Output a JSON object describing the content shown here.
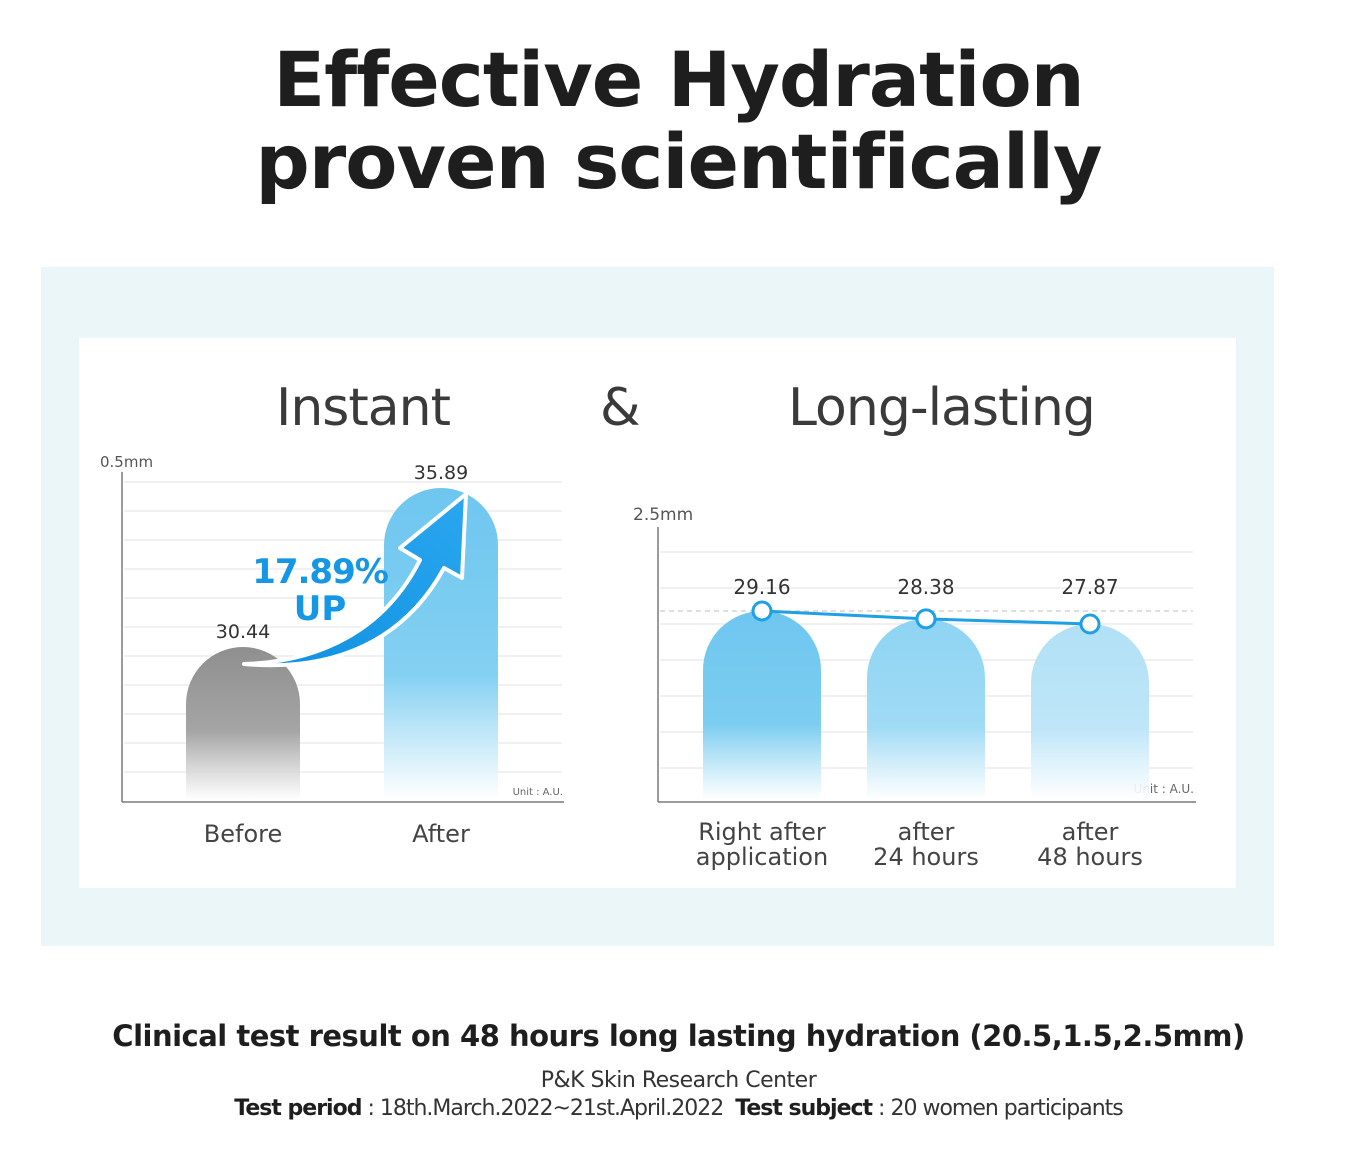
{
  "title_line1": "Effective Hydration",
  "title_line2": "proven scientifically",
  "heading_instant": "Instant",
  "heading_amp": "&",
  "heading_long": "Long-lasting",
  "colors": {
    "panel_bg": "#eaf6f7",
    "blue": "#4fb8eb",
    "gray": "#9a9a9a",
    "arrow_blue": "#1597e5",
    "line_blue": "#1ea0e6"
  },
  "chart_data": [
    {
      "type": "bar",
      "axis_top_label": "0.5mm",
      "unit": "Unit : A.U.",
      "categories": [
        "Before",
        "After"
      ],
      "values": [
        30.44,
        35.89
      ],
      "value_labels": [
        "30.44",
        "35.89"
      ],
      "grid": true,
      "annotation": {
        "line1": "17.89%",
        "line2": "UP"
      }
    },
    {
      "type": "bar",
      "axis_top_label": "2.5mm",
      "unit": "Unit : A.U.",
      "categories": [
        [
          "Right after",
          "application"
        ],
        [
          "after",
          "24 hours"
        ],
        [
          "after",
          "48 hours"
        ]
      ],
      "values": [
        29.16,
        28.38,
        27.87
      ],
      "value_labels": [
        "29.16",
        "28.38",
        "27.87"
      ],
      "grid": true,
      "overlay_line": true
    }
  ],
  "footer": {
    "main": "Clinical test result on 48 hours long lasting hydration (20.5,1.5,2.5mm)",
    "center": "P&K Skin Research Center",
    "period_label": "Test period",
    "period_value": " : 18th.March.2022~21st.April.2022",
    "subject_label": "Test subject",
    "subject_value": " : 20 women participants"
  }
}
